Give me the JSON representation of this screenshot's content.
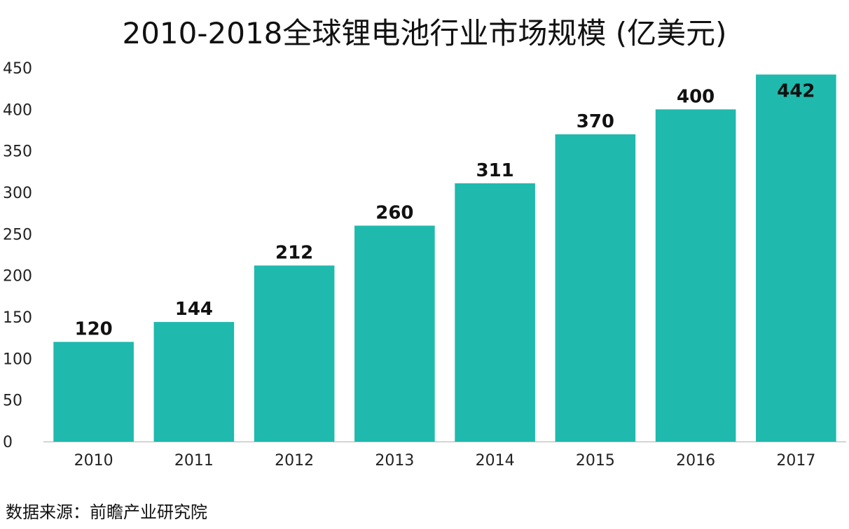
{
  "title": "2010-2018全球锂电池行业市场规模 (亿美元)",
  "source": "数据来源：前瞻产业研究院",
  "colors": {
    "bar": "#1fb9ad",
    "axis": "#b0b0b0"
  },
  "chart_data": {
    "type": "bar",
    "title": "2010-2018全球锂电池行业市场规模 (亿美元)",
    "xlabel": "",
    "ylabel": "",
    "categories": [
      "2010",
      "2011",
      "2012",
      "2013",
      "2014",
      "2015",
      "2016",
      "2017"
    ],
    "values": [
      120,
      144,
      212,
      260,
      311,
      370,
      400,
      442
    ],
    "data_labels": [
      "120",
      "144",
      "212",
      "260",
      "311",
      "370",
      "400",
      "442"
    ],
    "ylim": [
      0,
      450
    ],
    "yticks": [
      "0",
      "50",
      "100",
      "150",
      "200",
      "250",
      "300",
      "350",
      "400",
      "450"
    ],
    "grid": false,
    "legend": "none"
  }
}
